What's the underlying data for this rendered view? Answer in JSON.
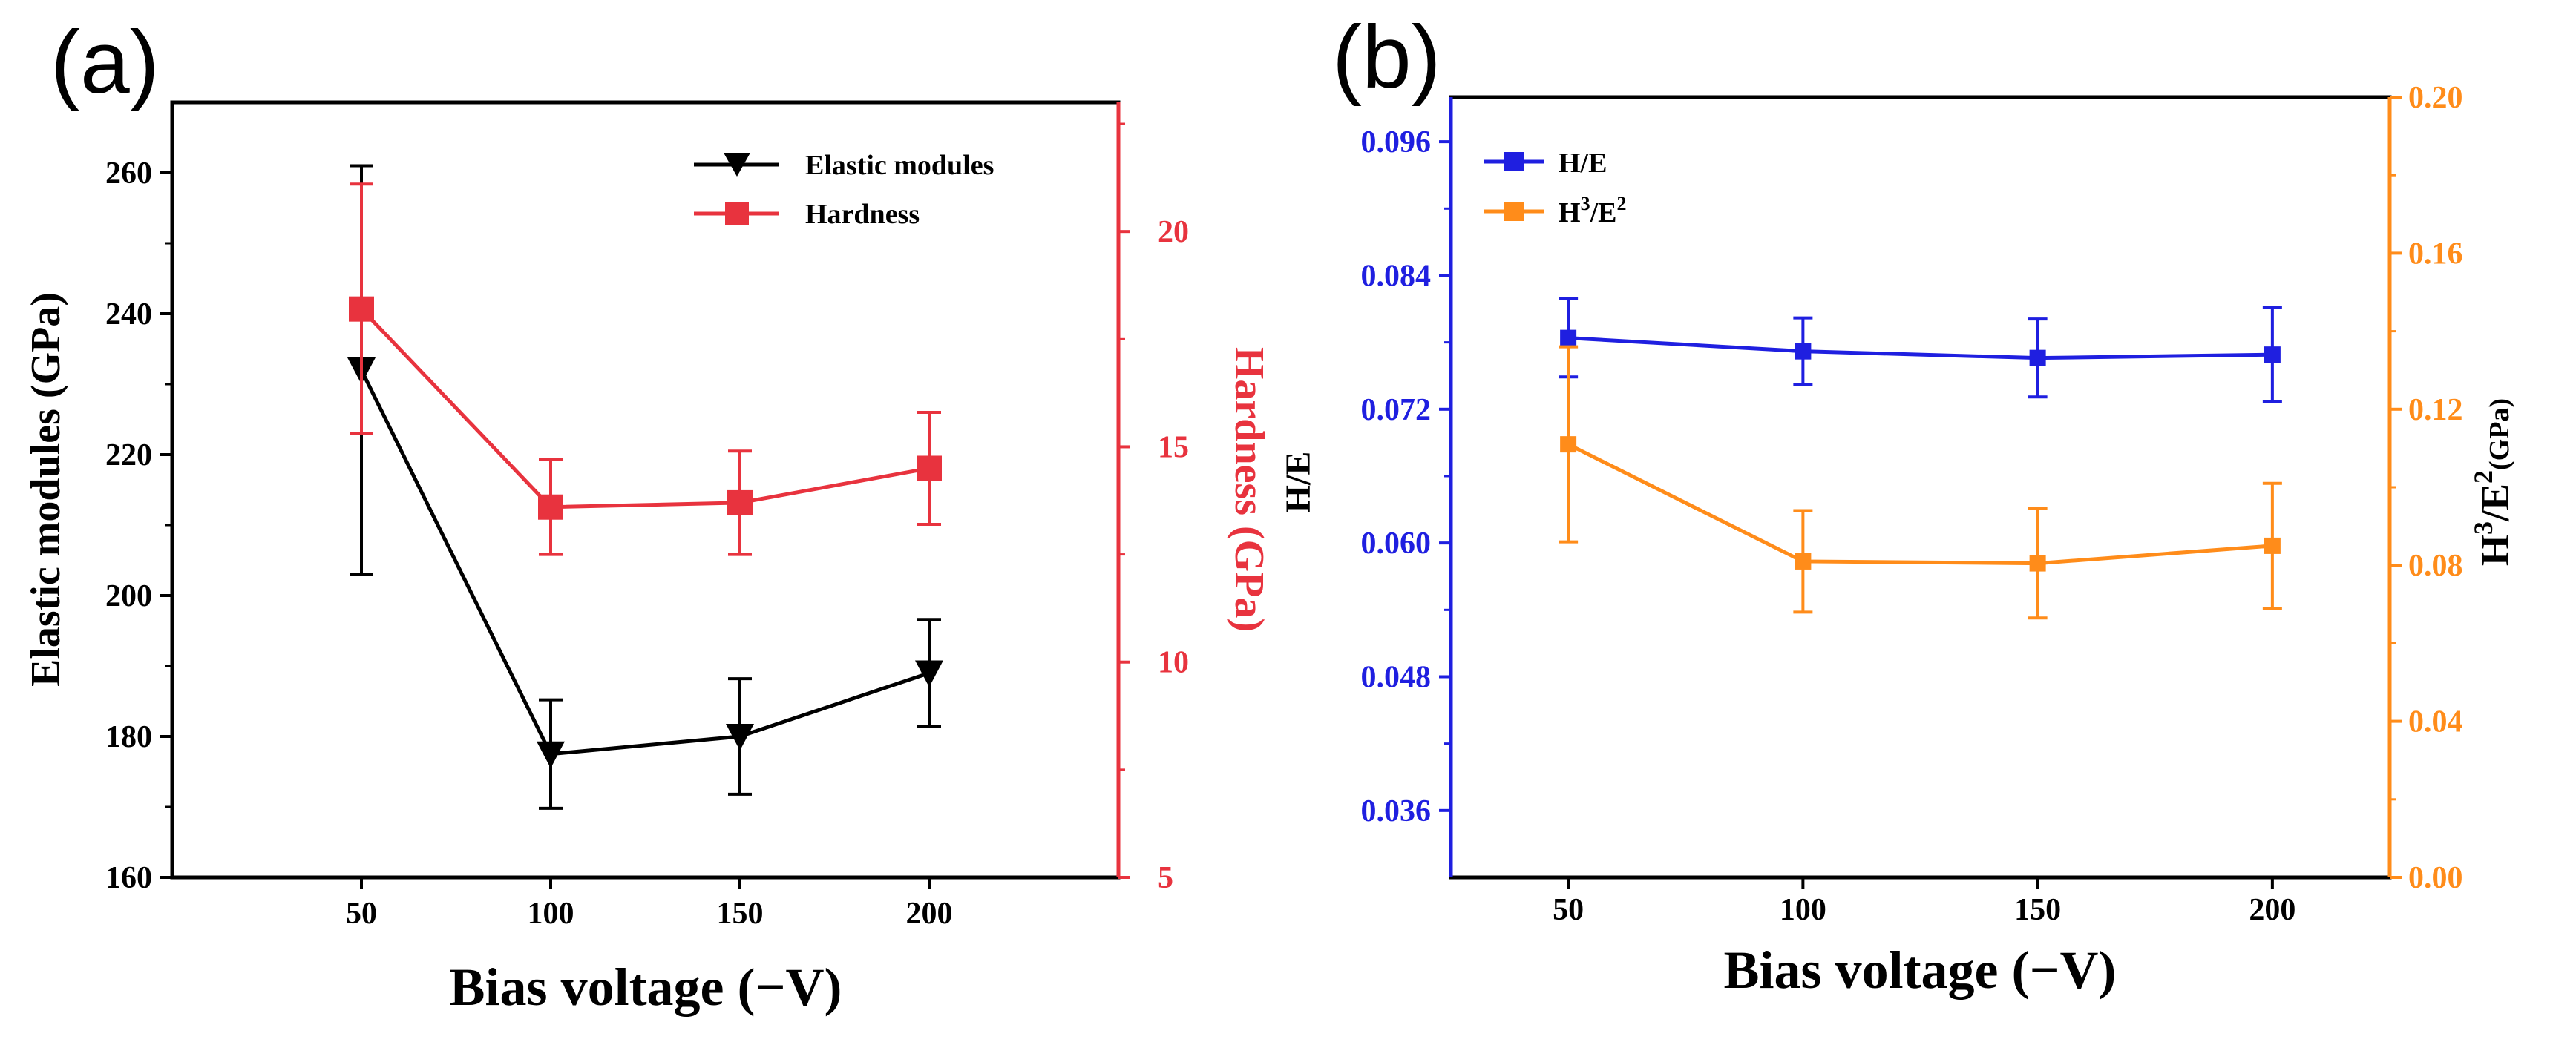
{
  "chart_data": [
    {
      "panel_label": "(a)",
      "type": "line",
      "xlabel": "Bias voltage (−V)",
      "x": [
        50,
        100,
        150,
        200
      ],
      "x_ticks": [
        "50",
        "100",
        "150",
        "200"
      ],
      "xlim": [
        0,
        250
      ],
      "y_left": {
        "label": "Elastic modules (GPa)",
        "lim": [
          160,
          270
        ],
        "ticks": [
          "160",
          "180",
          "200",
          "220",
          "240",
          "260"
        ],
        "color": "#000000"
      },
      "y_right": {
        "label": "Hardness (GPa)",
        "lim": [
          5,
          23
        ],
        "ticks": [
          "5",
          "10",
          "15",
          "20"
        ],
        "color": "#e8333e"
      },
      "series": [
        {
          "name": "Elastic modules",
          "axis": "left",
          "marker": "triangle-down",
          "color": "#000000",
          "values": [
            232,
            177.5,
            180,
            189
          ],
          "errors": [
            29,
            7.7,
            8.2,
            7.6
          ]
        },
        {
          "name": "Hardness",
          "axis": "right",
          "marker": "square",
          "color": "#e8333e",
          "values": [
            18.2,
            13.6,
            13.7,
            14.5
          ],
          "errors": [
            2.9,
            1.1,
            1.2,
            1.3
          ]
        }
      ]
    },
    {
      "panel_label": "(b)",
      "type": "line",
      "xlabel": "Bias voltage (−V)",
      "x": [
        50,
        100,
        150,
        200
      ],
      "x_ticks": [
        "50",
        "100",
        "150",
        "200"
      ],
      "xlim": [
        25,
        225
      ],
      "y_left": {
        "label": "H/E",
        "lim": [
          0.03,
          0.1
        ],
        "ticks": [
          "0.036",
          "0.048",
          "0.060",
          "0.072",
          "0.084",
          "0.096"
        ],
        "color": "#1f1fe0"
      },
      "y_right": {
        "label_main": "H",
        "label_sup1": "3",
        "label_mid": "/E",
        "label_sup2": "2",
        "label_unit": "(GPa)",
        "lim": [
          0,
          0.2
        ],
        "ticks": [
          "0.00",
          "0.04",
          "0.08",
          "0.12",
          "0.16",
          "0.20"
        ],
        "color": "#ff8c1a"
      },
      "series": [
        {
          "name_main": "H/E",
          "axis": "left",
          "marker": "square",
          "color": "#1f1fe0",
          "values": [
            0.0784,
            0.0772,
            0.0766,
            0.0769
          ],
          "errors": [
            0.0035,
            0.003,
            0.0035,
            0.0042
          ]
        },
        {
          "name_main": "H",
          "name_sup1": "3",
          "name_mid": "/E",
          "name_sup2": "2",
          "axis": "right",
          "marker": "square",
          "color": "#ff8c1a",
          "values": [
            0.111,
            0.081,
            0.0805,
            0.085
          ],
          "errors": [
            0.025,
            0.013,
            0.014,
            0.016
          ]
        }
      ]
    }
  ]
}
